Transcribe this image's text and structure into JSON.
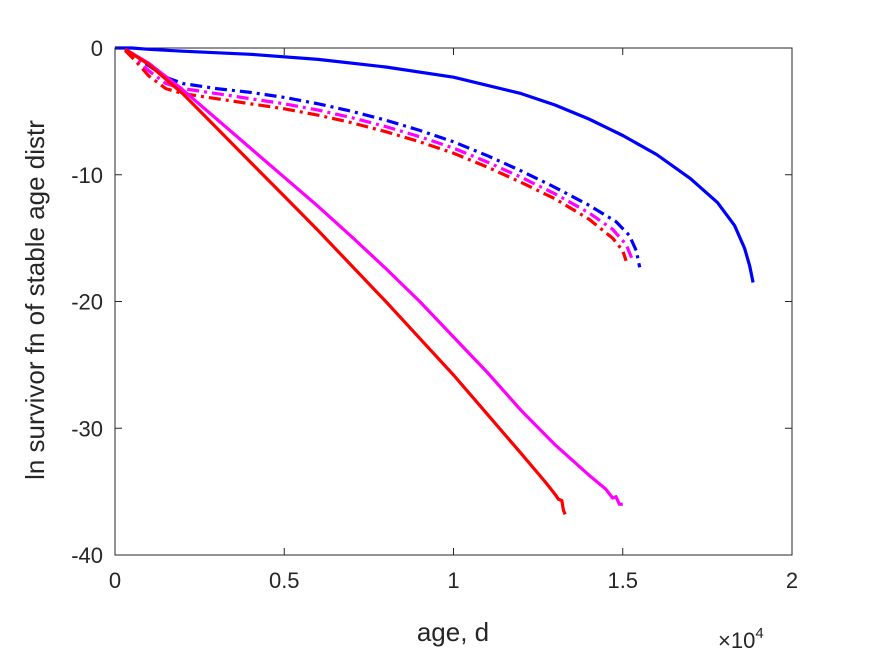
{
  "chart_data": {
    "type": "line",
    "xlabel": "age, d",
    "ylabel": "ln survivor fn of stable age distr",
    "x_multiplier": {
      "base": "×10",
      "exponent": "4"
    },
    "xlim": [
      0,
      20000
    ],
    "ylim": [
      -40,
      0
    ],
    "x_ticks": [
      0,
      5000,
      10000,
      15000,
      20000
    ],
    "x_tick_labels": [
      "0",
      "0.5",
      "1",
      "1.5",
      "2"
    ],
    "y_ticks": [
      0,
      -10,
      -20,
      -30,
      -40
    ],
    "y_tick_labels": [
      "0",
      "-10",
      "-20",
      "-30",
      "-40"
    ],
    "grid": false,
    "legend": "none",
    "series": [
      {
        "color": "#0000ff",
        "style": "solid",
        "points": [
          [
            0,
            0
          ],
          [
            500,
            0
          ],
          [
            1000,
            -0.1
          ],
          [
            2000,
            -0.25
          ],
          [
            4000,
            -0.5
          ],
          [
            6000,
            -0.9
          ],
          [
            8000,
            -1.5
          ],
          [
            10000,
            -2.3
          ],
          [
            12000,
            -3.6
          ],
          [
            13000,
            -4.5
          ],
          [
            14000,
            -5.6
          ],
          [
            15000,
            -6.9
          ],
          [
            16000,
            -8.4
          ],
          [
            17000,
            -10.3
          ],
          [
            17800,
            -12.2
          ],
          [
            18300,
            -14.0
          ],
          [
            18600,
            -15.8
          ],
          [
            18750,
            -17.2
          ],
          [
            18850,
            -18.5
          ]
        ]
      },
      {
        "color": "#0000ff",
        "style": "dashdot",
        "points": [
          [
            300,
            -0.1
          ],
          [
            600,
            -0.6
          ],
          [
            1000,
            -1.4
          ],
          [
            1500,
            -2.3
          ],
          [
            2000,
            -2.8
          ],
          [
            3000,
            -3.2
          ],
          [
            4000,
            -3.5
          ],
          [
            5000,
            -3.9
          ],
          [
            6000,
            -4.4
          ],
          [
            7000,
            -5.0
          ],
          [
            8000,
            -5.7
          ],
          [
            9000,
            -6.5
          ],
          [
            10000,
            -7.4
          ],
          [
            11000,
            -8.5
          ],
          [
            12000,
            -9.7
          ],
          [
            13000,
            -11.0
          ],
          [
            14000,
            -12.4
          ],
          [
            14800,
            -13.7
          ],
          [
            15200,
            -14.8
          ],
          [
            15400,
            -16.0
          ],
          [
            15500,
            -17.3
          ]
        ]
      },
      {
        "color": "#ff00ff",
        "style": "dashdot",
        "points": [
          [
            300,
            -0.15
          ],
          [
            600,
            -0.8
          ],
          [
            1000,
            -1.8
          ],
          [
            1500,
            -2.8
          ],
          [
            2000,
            -3.2
          ],
          [
            3000,
            -3.6
          ],
          [
            4000,
            -4.0
          ],
          [
            5000,
            -4.4
          ],
          [
            6000,
            -4.9
          ],
          [
            7000,
            -5.5
          ],
          [
            8000,
            -6.2
          ],
          [
            9000,
            -7.0
          ],
          [
            10000,
            -7.9
          ],
          [
            11000,
            -9.0
          ],
          [
            12000,
            -10.2
          ],
          [
            13000,
            -11.5
          ],
          [
            14000,
            -13.0
          ],
          [
            14700,
            -14.3
          ],
          [
            15100,
            -15.5
          ],
          [
            15300,
            -16.8
          ]
        ]
      },
      {
        "color": "#ff0000",
        "style": "dashdot",
        "points": [
          [
            300,
            -0.2
          ],
          [
            600,
            -1.0
          ],
          [
            1000,
            -2.2
          ],
          [
            1500,
            -3.2
          ],
          [
            2000,
            -3.6
          ],
          [
            3000,
            -4.0
          ],
          [
            4000,
            -4.4
          ],
          [
            5000,
            -4.8
          ],
          [
            6000,
            -5.3
          ],
          [
            7000,
            -5.9
          ],
          [
            8000,
            -6.6
          ],
          [
            9000,
            -7.4
          ],
          [
            10000,
            -8.3
          ],
          [
            11000,
            -9.4
          ],
          [
            12000,
            -10.6
          ],
          [
            13000,
            -11.9
          ],
          [
            14000,
            -13.5
          ],
          [
            14700,
            -15.0
          ],
          [
            15000,
            -16.0
          ],
          [
            15100,
            -16.8
          ]
        ]
      },
      {
        "color": "#ff00ff",
        "style": "solid",
        "points": [
          [
            300,
            -0.1
          ],
          [
            1000,
            -1.2
          ],
          [
            2000,
            -3.3
          ],
          [
            3000,
            -5.6
          ],
          [
            4000,
            -7.9
          ],
          [
            5000,
            -10.2
          ],
          [
            6000,
            -12.5
          ],
          [
            7000,
            -14.9
          ],
          [
            8000,
            -17.4
          ],
          [
            9000,
            -20.0
          ],
          [
            10000,
            -22.8
          ],
          [
            11000,
            -25.6
          ],
          [
            12000,
            -28.6
          ],
          [
            13000,
            -31.3
          ],
          [
            14000,
            -33.7
          ],
          [
            14500,
            -34.8
          ],
          [
            14700,
            -35.5
          ],
          [
            14800,
            -35.4
          ],
          [
            14900,
            -36.0
          ],
          [
            15000,
            -36.0
          ]
        ]
      },
      {
        "color": "#ff0000",
        "style": "solid",
        "points": [
          [
            300,
            -0.1
          ],
          [
            1000,
            -1.3
          ],
          [
            2000,
            -3.6
          ],
          [
            3000,
            -6.3
          ],
          [
            4000,
            -9.0
          ],
          [
            5000,
            -11.7
          ],
          [
            6000,
            -14.4
          ],
          [
            7000,
            -17.2
          ],
          [
            8000,
            -20.0
          ],
          [
            9000,
            -22.9
          ],
          [
            10000,
            -25.8
          ],
          [
            11000,
            -28.9
          ],
          [
            12000,
            -32.0
          ],
          [
            12700,
            -34.2
          ],
          [
            13000,
            -35.2
          ],
          [
            13100,
            -35.6
          ],
          [
            13200,
            -35.7
          ],
          [
            13250,
            -36.5
          ],
          [
            13300,
            -36.8
          ]
        ]
      }
    ]
  }
}
